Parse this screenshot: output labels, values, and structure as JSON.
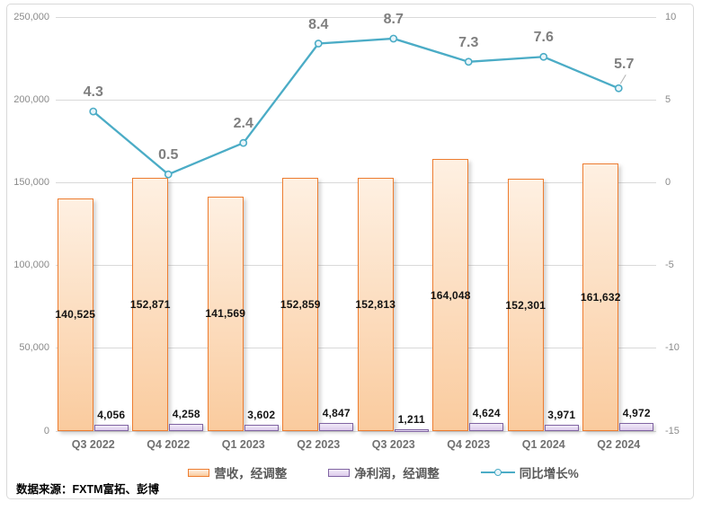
{
  "source_note": "数据来源：FXTM富拓、彭博",
  "chart_data": {
    "type": "combo",
    "categories": [
      "Q3 2022",
      "Q4 2022",
      "Q1 2023",
      "Q2 2023",
      "Q3 2023",
      "Q4 2023",
      "Q1 2024",
      "Q2 2024"
    ],
    "series": [
      {
        "name": "营收，经调整",
        "type": "bar",
        "axis": "left",
        "values": [
          140525,
          152871,
          141569,
          152859,
          152813,
          164048,
          152301,
          161632
        ],
        "labels": [
          "140,525",
          "152,871",
          "141,569",
          "152,859",
          "152,813",
          "164,048",
          "152,301",
          "161,632"
        ],
        "fill_top": "#FEF0E2",
        "fill_bottom": "#FACB9E",
        "border": "#ED7D31"
      },
      {
        "name": "净利润，经调整",
        "type": "bar",
        "axis": "left",
        "values": [
          4056,
          4258,
          3602,
          4847,
          1211,
          4624,
          3971,
          4972
        ],
        "labels": [
          "4,056",
          "4,258",
          "3,602",
          "4,847",
          "1,211",
          "4,624",
          "3,971",
          "4,972"
        ],
        "fill_top": "#F1EBF8",
        "fill_bottom": "#DCCBEC",
        "border": "#8064A2"
      },
      {
        "name": "同比增长%",
        "type": "line",
        "axis": "right",
        "values": [
          4.3,
          0.5,
          2.4,
          8.4,
          8.7,
          7.3,
          7.6,
          5.7
        ],
        "labels": [
          "4.3",
          "0.5",
          "2.4",
          "8.4",
          "8.7",
          "7.3",
          "7.6",
          "5.7"
        ],
        "color": "#4BACC6",
        "marker_fill": "#E9F5FA"
      }
    ],
    "left_axis": {
      "min": 0,
      "max": 250000,
      "tick_values": [
        0,
        50000,
        100000,
        150000,
        200000,
        250000
      ],
      "tick_labels": [
        "0",
        "50,000",
        "100,000",
        "150,000",
        "200,000",
        "250,000"
      ]
    },
    "right_axis": {
      "min": -15,
      "max": 10,
      "tick_values": [
        -15,
        -10,
        -5,
        0,
        5,
        10
      ],
      "tick_labels": [
        "-15",
        "-10",
        "-5",
        "0",
        "5",
        "10"
      ]
    },
    "grid": true,
    "legend_position": "bottom",
    "gridline_color": "#D9D9D9"
  }
}
